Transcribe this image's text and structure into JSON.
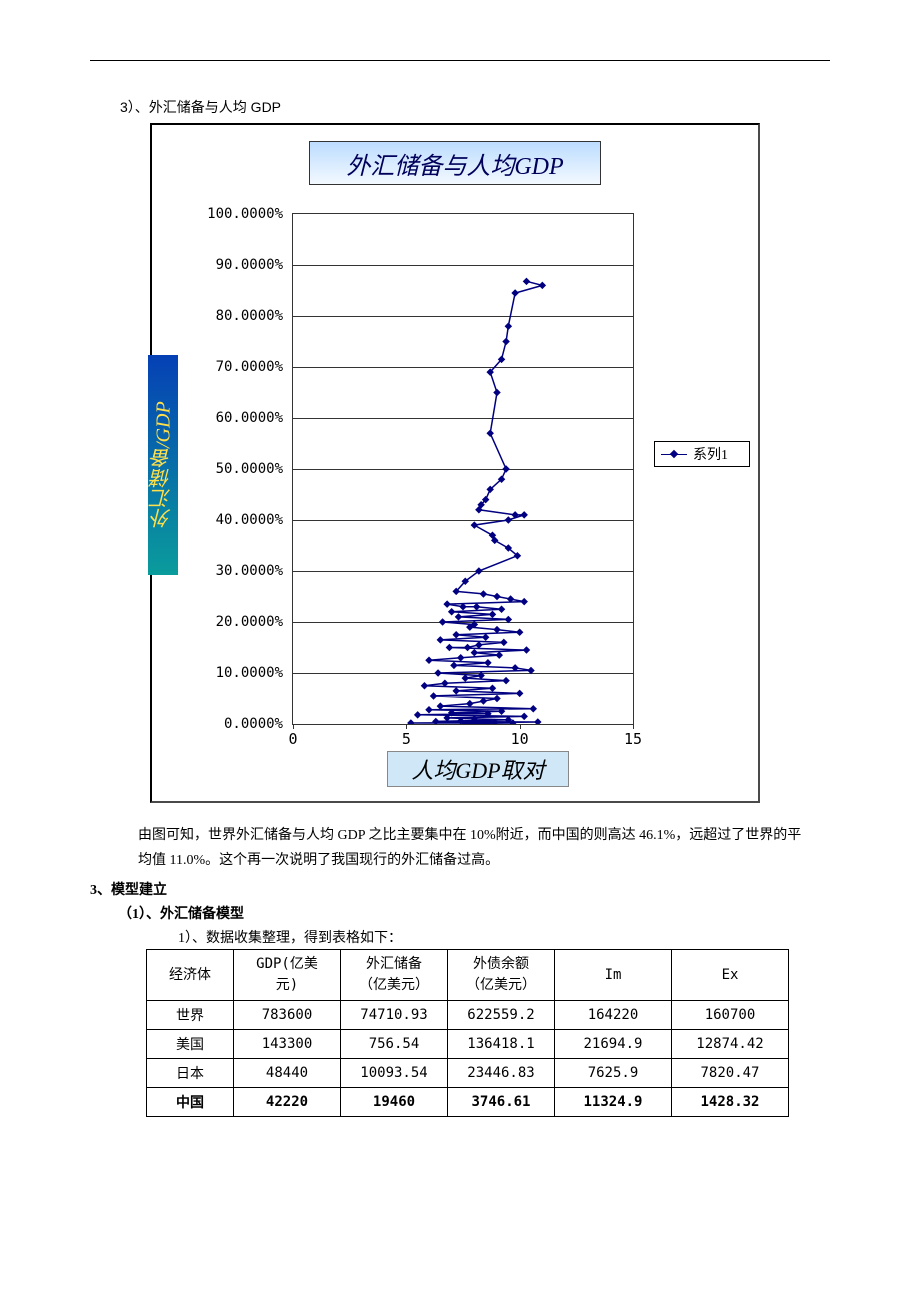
{
  "caption": "3）、外汇储备与人均 GDP",
  "chart": {
    "type": "scatter-line",
    "title": "外汇储备与人均GDP",
    "title_fontsize": 24,
    "title_color": "#00005a",
    "title_bg_gradient": [
      "#bcdcff",
      "#f3f9ff"
    ],
    "y_axis_label": "外汇储备/GDP",
    "y_axis_label_bg_gradient": [
      "#0a9c9c",
      "#0540b5"
    ],
    "y_axis_label_color": "#ffe04a",
    "x_axis_label": "人均GDP取对",
    "x_axis_label_bg": "#cfe7f7",
    "legend_label": "系列1",
    "series_color": "#000080",
    "marker": "diamond",
    "marker_size": 6,
    "line_width": 1.5,
    "background": "#ffffff",
    "grid_color": "#333333",
    "xlim": [
      0,
      15
    ],
    "ylim": [
      0,
      100
    ],
    "xticks": [
      0,
      5,
      10,
      15
    ],
    "yticks": [
      0,
      10,
      20,
      30,
      40,
      50,
      60,
      70,
      80,
      90,
      100
    ],
    "ytick_labels": [
      "0.0000%",
      "10.0000%",
      "20.0000%",
      "30.0000%",
      "40.0000%",
      "50.0000%",
      "60.0000%",
      "70.0000%",
      "80.0000%",
      "90.0000%",
      "100.0000%"
    ],
    "points": [
      [
        10.3,
        86.8
      ],
      [
        11.0,
        86.0
      ],
      [
        9.8,
        84.5
      ],
      [
        9.5,
        78.0
      ],
      [
        9.4,
        75.0
      ],
      [
        9.2,
        71.5
      ],
      [
        8.7,
        69.0
      ],
      [
        9.0,
        65.0
      ],
      [
        8.7,
        57.0
      ],
      [
        9.4,
        50.0
      ],
      [
        9.2,
        48.0
      ],
      [
        8.7,
        46.0
      ],
      [
        8.5,
        44.0
      ],
      [
        8.3,
        43.0
      ],
      [
        8.2,
        42.0
      ],
      [
        9.8,
        41.0
      ],
      [
        10.2,
        41.0
      ],
      [
        9.5,
        40.0
      ],
      [
        8.0,
        39.0
      ],
      [
        8.8,
        37.0
      ],
      [
        8.9,
        36.0
      ],
      [
        9.5,
        34.5
      ],
      [
        9.9,
        33.0
      ],
      [
        8.2,
        30.0
      ],
      [
        7.6,
        28.0
      ],
      [
        7.2,
        26.0
      ],
      [
        8.4,
        25.5
      ],
      [
        9.0,
        25.0
      ],
      [
        9.6,
        24.5
      ],
      [
        10.2,
        24.0
      ],
      [
        6.8,
        23.5
      ],
      [
        7.5,
        23.0
      ],
      [
        8.1,
        23.0
      ],
      [
        9.2,
        22.5
      ],
      [
        7.0,
        22.0
      ],
      [
        8.8,
        21.5
      ],
      [
        7.3,
        21.0
      ],
      [
        9.5,
        20.5
      ],
      [
        6.6,
        20.0
      ],
      [
        8.0,
        19.5
      ],
      [
        7.8,
        19.0
      ],
      [
        9.0,
        18.5
      ],
      [
        10.0,
        18.0
      ],
      [
        7.2,
        17.5
      ],
      [
        8.5,
        17.0
      ],
      [
        6.5,
        16.5
      ],
      [
        9.3,
        16.0
      ],
      [
        8.2,
        15.5
      ],
      [
        7.7,
        15.0
      ],
      [
        6.9,
        15.0
      ],
      [
        10.3,
        14.5
      ],
      [
        8.0,
        14.0
      ],
      [
        9.1,
        13.5
      ],
      [
        7.4,
        13.0
      ],
      [
        6.0,
        12.5
      ],
      [
        8.6,
        12.0
      ],
      [
        7.1,
        11.5
      ],
      [
        9.8,
        11.0
      ],
      [
        10.5,
        10.5
      ],
      [
        6.4,
        10.0
      ],
      [
        8.3,
        9.5
      ],
      [
        7.6,
        9.0
      ],
      [
        9.4,
        8.5
      ],
      [
        6.7,
        8.0
      ],
      [
        5.8,
        7.5
      ],
      [
        8.8,
        7.0
      ],
      [
        7.2,
        6.5
      ],
      [
        10.0,
        6.0
      ],
      [
        6.2,
        5.5
      ],
      [
        9.0,
        5.0
      ],
      [
        8.4,
        4.5
      ],
      [
        7.8,
        4.0
      ],
      [
        6.5,
        3.5
      ],
      [
        10.6,
        3.0
      ],
      [
        6.0,
        2.8
      ],
      [
        9.2,
        2.5
      ],
      [
        7.0,
        2.2
      ],
      [
        8.6,
        2.0
      ],
      [
        5.5,
        1.8
      ],
      [
        10.2,
        1.5
      ],
      [
        6.8,
        1.2
      ],
      [
        8.0,
        1.0
      ],
      [
        9.5,
        0.8
      ],
      [
        7.4,
        0.6
      ],
      [
        6.3,
        0.5
      ],
      [
        10.8,
        0.4
      ],
      [
        8.9,
        0.3
      ],
      [
        5.2,
        0.2
      ],
      [
        9.7,
        0.2
      ],
      [
        7.6,
        0.1
      ]
    ]
  },
  "paragraph1": "由图可知，世界外汇储备与人均 GDP 之比主要集中在 10%附近，而中国的则高达 46.1%，远超过了世界的平均值 11.0%。这个再一次说明了我国现行的外汇储备过高。",
  "section3": "3、模型建立",
  "subsection31": "（1）、外汇储备模型",
  "table_note": "1）、数据收集整理，得到表格如下：",
  "table": {
    "columns": [
      "经济体",
      "GDP(亿美元)",
      "外汇储备（亿美元）",
      "外债余额（亿美元）",
      "Im",
      "Ex"
    ],
    "col_line2": [
      "",
      "元)",
      "（亿美元）",
      "（亿美元）",
      "",
      ""
    ],
    "rows": [
      [
        "世界",
        "783600",
        "74710.93",
        "622559.2",
        "164220",
        "160700"
      ],
      [
        "美国",
        "143300",
        "756.54",
        "136418.1",
        "21694.9",
        "12874.42"
      ],
      [
        "日本",
        "48440",
        "10093.54",
        "23446.83",
        "7625.9",
        "7820.47"
      ],
      [
        "中国",
        "42220",
        "19460",
        "3746.61",
        "11324.9",
        "1428.32"
      ]
    ],
    "bold_row_index": 3
  }
}
